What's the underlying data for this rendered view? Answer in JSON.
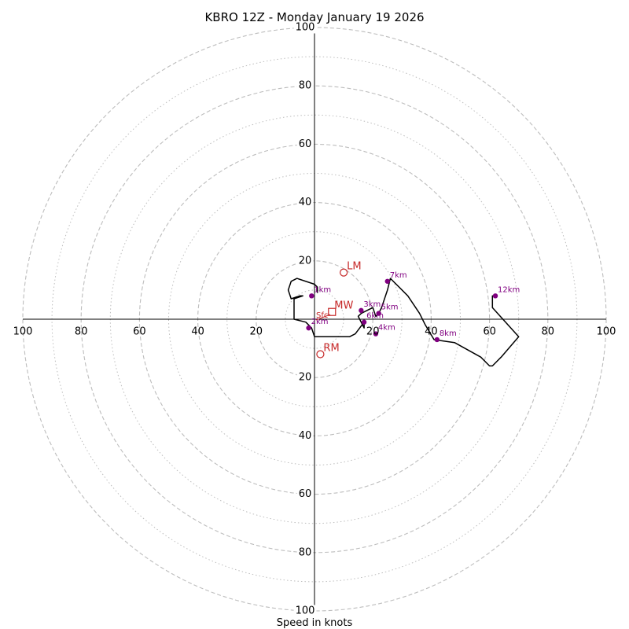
{
  "chart_data": {
    "type": "hodograph",
    "title": "KBRO 12Z - Monday January 19 2026",
    "xlabel": "Speed in knots",
    "max_speed": 100,
    "major_rings": [
      20,
      40,
      60,
      80,
      100
    ],
    "minor_rings": [
      10,
      30,
      50,
      70,
      90
    ],
    "tick_labels": {
      "left": [
        "100",
        "80",
        "60",
        "40",
        "20"
      ],
      "right": [
        "20",
        "40",
        "60",
        "80",
        "100"
      ],
      "top": [
        "20",
        "40",
        "60",
        "80",
        "100"
      ],
      "bottom": [
        "20",
        "40",
        "60",
        "80",
        "100"
      ]
    },
    "tick_values": [
      20,
      40,
      60,
      80,
      100
    ],
    "trace_uv": [
      [
        1,
        9
      ],
      [
        1,
        11
      ],
      [
        0,
        12
      ],
      [
        -6,
        14
      ],
      [
        -8,
        13
      ],
      [
        -9,
        10
      ],
      [
        -8,
        7
      ],
      [
        -5,
        8
      ],
      [
        -4,
        8
      ],
      [
        -7,
        7
      ],
      [
        -7,
        0
      ],
      [
        -3,
        -1
      ],
      [
        -1,
        -3
      ],
      [
        0,
        -6
      ],
      [
        12,
        -6
      ],
      [
        14,
        -5
      ],
      [
        17,
        -1
      ],
      [
        17,
        -3
      ],
      [
        15,
        1
      ],
      [
        16,
        2
      ],
      [
        20,
        4
      ],
      [
        21,
        1
      ],
      [
        22,
        2
      ],
      [
        23,
        4
      ],
      [
        25,
        10
      ],
      [
        26,
        14
      ],
      [
        32,
        8
      ],
      [
        36,
        2
      ],
      [
        38,
        -2
      ],
      [
        41,
        -7
      ],
      [
        48,
        -8
      ],
      [
        57,
        -13
      ],
      [
        60,
        -16
      ],
      [
        61,
        -16
      ],
      [
        64,
        -13
      ],
      [
        70,
        -6
      ],
      [
        61,
        4
      ],
      [
        61,
        8
      ],
      [
        62,
        8
      ]
    ],
    "height_markers": [
      {
        "label": "1km",
        "u": -1,
        "v": 8
      },
      {
        "label": "2km",
        "u": -2,
        "v": -3
      },
      {
        "label": "3km",
        "u": 16,
        "v": 3
      },
      {
        "label": "4km",
        "u": 21,
        "v": -5
      },
      {
        "label": "5km",
        "u": 22,
        "v": 2
      },
      {
        "label": "6km",
        "u": 17,
        "v": -1
      },
      {
        "label": "7km",
        "u": 25,
        "v": 13
      },
      {
        "label": "8km",
        "u": 42,
        "v": -7
      },
      {
        "label": "12km",
        "u": 62,
        "v": 8
      }
    ],
    "storm_motion": [
      {
        "label": "LM",
        "u": 10,
        "v": 16,
        "shape": "circle"
      },
      {
        "label": "RM",
        "u": 2,
        "v": -12,
        "shape": "circle"
      },
      {
        "label": "MW",
        "u": 6,
        "v": 2.5,
        "shape": "square"
      },
      {
        "label": "Sfc",
        "u": 0,
        "v": 0,
        "shape": "arrow"
      }
    ],
    "colors": {
      "trace": "#000000",
      "height_marker": "#800080",
      "storm_motion": "#c62828",
      "ring": "#bdbdbd",
      "axis": "#000000"
    }
  }
}
